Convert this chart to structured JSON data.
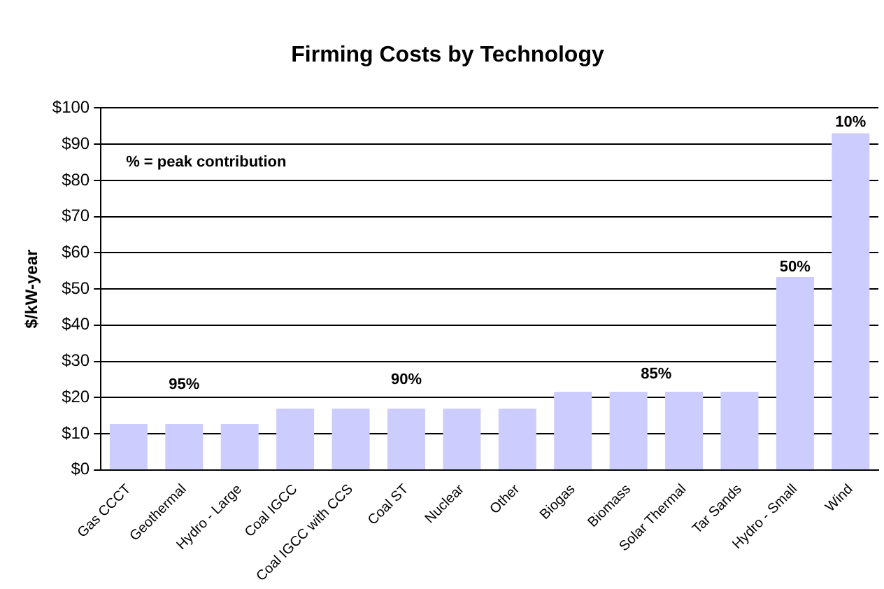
{
  "chart_data": {
    "type": "bar",
    "title": "Firming Costs by Technology",
    "ylabel": "$/kW-year",
    "categories": [
      "Gas CCCT",
      "Geothermal",
      "Hydro - Large",
      "Coal IGCC",
      "Coal IGCC with CCS",
      "Coal ST",
      "Nuclear",
      "Other",
      "Biogas",
      "Biomass",
      "Solar Thermal",
      "Tar Sands",
      "Hydro - Small",
      "Wind"
    ],
    "values": [
      12.7,
      12.7,
      12.7,
      16.9,
      16.9,
      16.9,
      16.9,
      16.9,
      21.6,
      21.6,
      21.6,
      21.6,
      53.3,
      93
    ],
    "color": "#ccccff",
    "ylim": [
      0,
      100
    ],
    "yticks": [
      {
        "value": 0,
        "label": "$0"
      },
      {
        "value": 10,
        "label": "$10"
      },
      {
        "value": 20,
        "label": "$20"
      },
      {
        "value": 30,
        "label": "$30"
      },
      {
        "value": 40,
        "label": "$40"
      },
      {
        "value": 50,
        "label": "$50"
      },
      {
        "value": 60,
        "label": "$60"
      },
      {
        "value": 70,
        "label": "$70"
      },
      {
        "value": 80,
        "label": "$80"
      },
      {
        "value": 90,
        "label": "$90"
      },
      {
        "value": 100,
        "label": "$100"
      }
    ],
    "grid": "y",
    "legend": false,
    "annotations": [
      "% = peak contribution",
      "95%",
      "90%",
      "85%",
      "50%",
      "10%"
    ]
  }
}
